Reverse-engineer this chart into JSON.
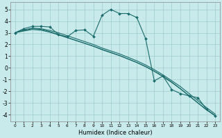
{
  "xlabel": "Humidex (Indice chaleur)",
  "background_color": "#c8eaea",
  "grid_color": "#a0cccc",
  "line_color": "#1a6b6b",
  "xlim": [
    -0.5,
    23.5
  ],
  "ylim": [
    -4.6,
    5.6
  ],
  "xticks": [
    0,
    1,
    2,
    3,
    4,
    5,
    6,
    7,
    8,
    9,
    10,
    11,
    12,
    13,
    14,
    15,
    16,
    17,
    18,
    19,
    20,
    21,
    22,
    23
  ],
  "yticks": [
    -4,
    -3,
    -2,
    -1,
    0,
    1,
    2,
    3,
    4,
    5
  ],
  "smooth1_x": [
    0,
    1,
    2,
    3,
    4,
    5,
    6,
    7,
    8,
    9,
    10,
    11,
    12,
    13,
    14,
    15,
    16,
    17,
    18,
    19,
    20,
    21,
    22,
    23
  ],
  "smooth1_y": [
    3.0,
    3.25,
    3.4,
    3.35,
    3.2,
    3.0,
    2.75,
    2.5,
    2.25,
    2.0,
    1.7,
    1.45,
    1.2,
    0.9,
    0.6,
    0.25,
    -0.15,
    -0.6,
    -1.1,
    -1.6,
    -2.2,
    -2.8,
    -3.4,
    -3.95
  ],
  "smooth2_x": [
    0,
    1,
    2,
    3,
    4,
    5,
    6,
    7,
    8,
    9,
    10,
    11,
    12,
    13,
    14,
    15,
    16,
    17,
    18,
    19,
    20,
    21,
    22,
    23
  ],
  "smooth2_y": [
    3.0,
    3.2,
    3.35,
    3.3,
    3.1,
    2.85,
    2.6,
    2.35,
    2.1,
    1.85,
    1.55,
    1.3,
    1.05,
    0.75,
    0.45,
    0.1,
    -0.3,
    -0.75,
    -1.25,
    -1.8,
    -2.4,
    -3.0,
    -3.6,
    -4.1
  ],
  "smooth3_x": [
    0,
    1,
    2,
    3,
    4,
    5,
    6,
    7,
    8,
    9,
    10,
    11,
    12,
    13,
    14,
    15,
    16,
    17,
    18,
    19,
    20,
    21,
    22,
    23
  ],
  "smooth3_y": [
    3.0,
    3.15,
    3.28,
    3.22,
    3.05,
    2.82,
    2.58,
    2.34,
    2.1,
    1.86,
    1.58,
    1.32,
    1.06,
    0.76,
    0.46,
    0.12,
    -0.28,
    -0.72,
    -1.22,
    -1.78,
    -2.38,
    -2.98,
    -3.58,
    -4.08
  ],
  "main_x": [
    0,
    1,
    2,
    3,
    4,
    5,
    6,
    7,
    8,
    9,
    10,
    11,
    12,
    13,
    14,
    15,
    16,
    17,
    18,
    19,
    20,
    21,
    22,
    23
  ],
  "main_y": [
    3.0,
    3.35,
    3.55,
    3.55,
    3.5,
    2.85,
    2.65,
    3.2,
    3.25,
    2.7,
    4.5,
    5.0,
    4.65,
    4.65,
    4.3,
    2.5,
    -1.1,
    -0.7,
    -1.85,
    -2.2,
    -2.4,
    -2.55,
    -3.55,
    -4.1
  ]
}
